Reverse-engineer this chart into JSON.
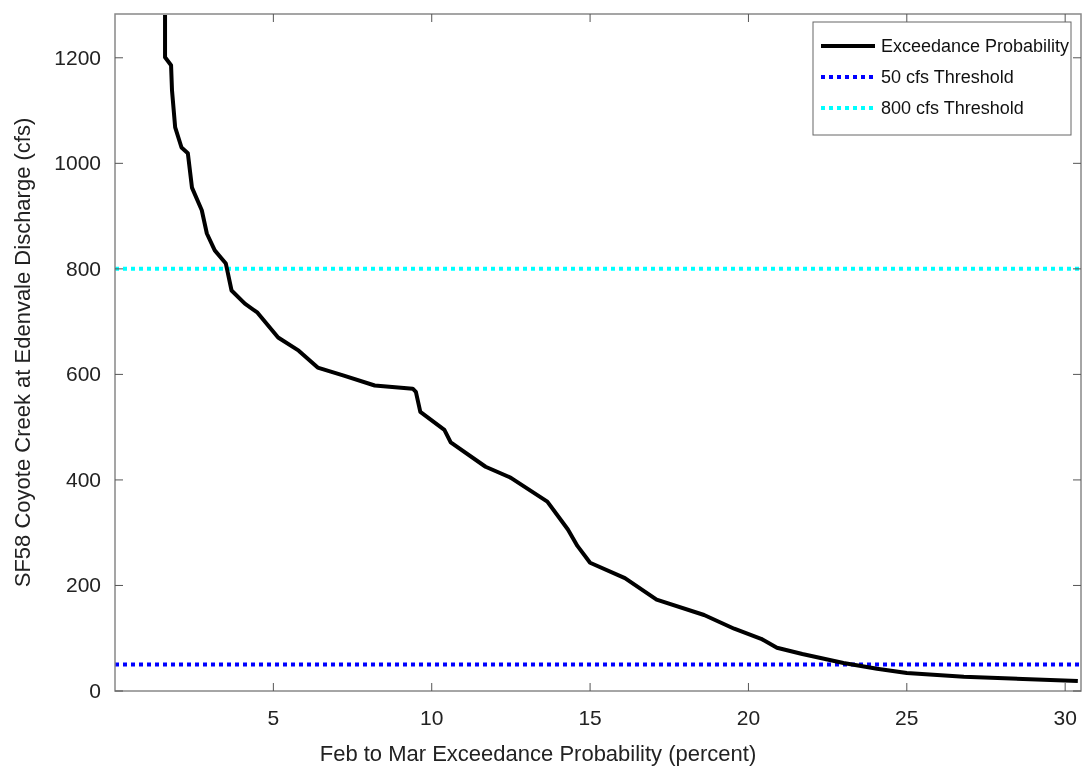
{
  "chart_data": {
    "type": "line",
    "xlabel": "Feb to Mar Exceedance Probability (percent)",
    "ylabel": "SF58 Coyote Creek at Edenvale Discharge (cfs)",
    "xlim": [
      0,
      30.5
    ],
    "xticks": [
      5,
      10,
      15,
      20,
      25,
      30
    ],
    "ylim": [
      0,
      1283
    ],
    "yticks": [
      0,
      200,
      400,
      600,
      800,
      1000,
      1200
    ],
    "grid": false,
    "legend": "top right",
    "line_style": "solid",
    "marker": "none",
    "series": [
      {
        "name": "Exceedance Probability",
        "color": "#000000",
        "x": [
          1.58,
          1.58,
          1.77,
          1.8,
          1.9,
          2.1,
          2.3,
          2.43,
          2.74,
          2.9,
          3.15,
          3.5,
          3.68,
          4.1,
          4.5,
          5.15,
          5.8,
          6.4,
          7.2,
          8.2,
          9.4,
          9.5,
          9.64,
          10.4,
          10.6,
          11.7,
          12.5,
          13.65,
          14.3,
          14.6,
          15.0,
          16.1,
          17.1,
          18.6,
          19.55,
          20.4,
          20.9,
          21.7,
          23.0,
          24.06,
          25.0,
          26.8,
          30.4
        ],
        "values": [
          1281,
          1201,
          1186,
          1138,
          1068,
          1030,
          1019,
          954,
          911,
          867,
          835,
          810,
          759,
          734,
          717,
          670,
          645,
          613,
          598,
          579,
          573,
          567,
          529,
          495,
          471,
          425,
          404,
          359,
          306,
          275,
          243,
          214,
          173,
          144,
          118,
          99,
          82,
          70,
          53,
          42,
          34,
          27,
          19
        ]
      }
    ],
    "ref_lines": [
      {
        "axis": "y",
        "value": 50,
        "label": "50 cfs Threshold",
        "color": "#0000ff",
        "line_style": "dotted"
      },
      {
        "axis": "y",
        "value": 800,
        "label": "800 cfs Threshold",
        "color": "#00ffff",
        "line_style": "dotted"
      }
    ]
  }
}
